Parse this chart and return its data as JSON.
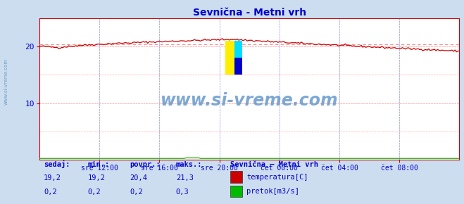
{
  "title": "Sevnična - Metni vrh",
  "bg_color": "#ddeeff",
  "plot_bg_color": "#ffffff",
  "outer_bg_color": "#ccddf0",
  "grid_color_h": "#ffaaaa",
  "grid_color_v": "#aaaaff",
  "temp_color": "#cc0000",
  "flow_color": "#00bb00",
  "avg_line_color": "#ff8888",
  "axis_color": "#cc0000",
  "text_color": "#0000cc",
  "watermark_color": "#6699cc",
  "ylim": [
    0,
    25
  ],
  "ytick_vals": [
    10,
    20
  ],
  "xtick_labels": [
    "sre 12:00",
    "sre 16:00",
    "sre 20:00",
    "čet 00:00",
    "čet 04:00",
    "čet 08:00"
  ],
  "n_points": 288,
  "temp_avg": 20.4,
  "watermark": "www.si-vreme.com",
  "legend_title": "Sevnična – Metni vrh",
  "legend_items": [
    "temperatura[C]",
    "pretok[m3/s]"
  ],
  "stat_labels": [
    "sedaj:",
    "min.:",
    "povpr.:",
    "maks.:"
  ],
  "stat_temp": [
    "19,2",
    "19,2",
    "20,4",
    "21,3"
  ],
  "stat_flow": [
    "0,2",
    "0,2",
    "0,2",
    "0,3"
  ],
  "left_label": "www.si-vreme.com"
}
